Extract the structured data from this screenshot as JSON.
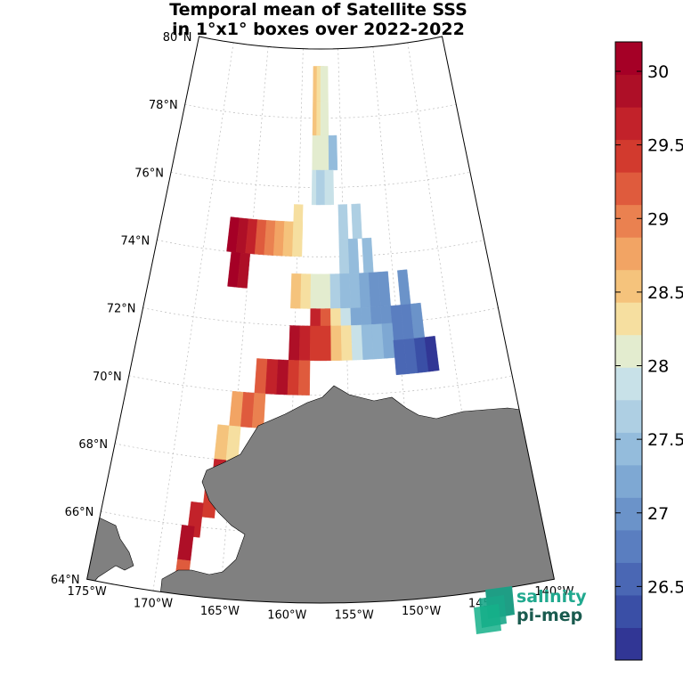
{
  "title": {
    "line1": "Temporal mean of Satellite SSS",
    "line2": "in 1°x1° boxes over 2022-2022"
  },
  "chart_data": {
    "type": "heatmap",
    "projection": "conic map",
    "lat_range": [
      64,
      80
    ],
    "lon_range": [
      -175,
      -140
    ],
    "lat_labels": [
      "80°N",
      "78°N",
      "76°N",
      "74°N",
      "72°N",
      "70°N",
      "68°N",
      "66°N",
      "64°N"
    ],
    "lon_labels": [
      "175°W",
      "170°W",
      "165°W",
      "160°W",
      "155°W",
      "150°W",
      "145°W",
      "140°W"
    ],
    "colorbar": {
      "range": [
        26.0,
        30.2
      ],
      "ticks": [
        "30",
        "29.5",
        "29",
        "28.5",
        "28",
        "27.5",
        "27",
        "26.5"
      ],
      "tick_values": [
        30,
        29.5,
        29,
        28.5,
        28,
        27.5,
        27,
        26.5
      ],
      "colors": [
        "#313695",
        "#3a4fa6",
        "#4a67b4",
        "#5a7ec0",
        "#6b93c9",
        "#7ea8d3",
        "#94bcdc",
        "#aecfe3",
        "#c8e1e8",
        "#e3eccf",
        "#f6dfa0",
        "#f5c37c",
        "#f2a464",
        "#ea8150",
        "#df5b3d",
        "#d23a2e",
        "#c2222a",
        "#ae0f27",
        "#a50026"
      ]
    },
    "cells": [
      {
        "lat": 79.0,
        "lon": -158.0,
        "v": 28.6
      },
      {
        "lat": 79.0,
        "lon": -157.5,
        "v": 28.3
      },
      {
        "lat": 79.0,
        "lon": -157.0,
        "v": 28.0
      },
      {
        "lat": 78.0,
        "lon": -158.0,
        "v": 28.6
      },
      {
        "lat": 78.0,
        "lon": -157.5,
        "v": 28.3
      },
      {
        "lat": 78.0,
        "lon": -157.0,
        "v": 28.0
      },
      {
        "lat": 77.0,
        "lon": -158.0,
        "v": 28.2
      },
      {
        "lat": 77.0,
        "lon": -157.0,
        "v": 28.2
      },
      {
        "lat": 77.0,
        "lon": -156.0,
        "v": 27.5
      },
      {
        "lat": 76.0,
        "lon": -158.0,
        "v": 27.8
      },
      {
        "lat": 76.0,
        "lon": -157.5,
        "v": 27.6
      },
      {
        "lat": 76.0,
        "lon": -156.5,
        "v": 27.9
      },
      {
        "lat": 75.0,
        "lon": -160.0,
        "v": 28.4
      },
      {
        "lat": 75.0,
        "lon": -155.0,
        "v": 27.7
      },
      {
        "lat": 75.0,
        "lon": -153.5,
        "v": 27.6
      },
      {
        "lat": 74.5,
        "lon": -167.0,
        "v": 30.0
      },
      {
        "lat": 74.5,
        "lon": -166.0,
        "v": 29.8
      },
      {
        "lat": 74.5,
        "lon": -165.0,
        "v": 29.6
      },
      {
        "lat": 74.5,
        "lon": -164.0,
        "v": 29.2
      },
      {
        "lat": 74.5,
        "lon": -163.0,
        "v": 28.9
      },
      {
        "lat": 74.5,
        "lon": -162.0,
        "v": 28.7
      },
      {
        "lat": 74.5,
        "lon": -161.0,
        "v": 28.5
      },
      {
        "lat": 74.5,
        "lon": -160.0,
        "v": 28.3
      },
      {
        "lat": 74.0,
        "lon": -155.0,
        "v": 27.6
      },
      {
        "lat": 74.0,
        "lon": -154.0,
        "v": 27.5
      },
      {
        "lat": 74.0,
        "lon": -152.5,
        "v": 27.4
      },
      {
        "lat": 73.5,
        "lon": -166.5,
        "v": 30.0
      },
      {
        "lat": 73.5,
        "lon": -165.5,
        "v": 29.8
      },
      {
        "lat": 73.0,
        "lon": -160.0,
        "v": 28.6
      },
      {
        "lat": 73.0,
        "lon": -159.0,
        "v": 28.4
      },
      {
        "lat": 73.0,
        "lon": -158.0,
        "v": 28.2
      },
      {
        "lat": 73.0,
        "lon": -157.0,
        "v": 28.0
      },
      {
        "lat": 73.0,
        "lon": -156.0,
        "v": 27.7
      },
      {
        "lat": 73.0,
        "lon": -155.0,
        "v": 27.5
      },
      {
        "lat": 73.0,
        "lon": -154.0,
        "v": 27.4
      },
      {
        "lat": 73.0,
        "lon": -153.0,
        "v": 27.2
      },
      {
        "lat": 73.0,
        "lon": -152.0,
        "v": 27.0
      },
      {
        "lat": 73.0,
        "lon": -151.0,
        "v": 27.1
      },
      {
        "lat": 73.0,
        "lon": -149.0,
        "v": 27.0
      },
      {
        "lat": 72.0,
        "lon": -158.0,
        "v": 29.6
      },
      {
        "lat": 72.0,
        "lon": -157.0,
        "v": 29.2
      },
      {
        "lat": 72.0,
        "lon": -156.0,
        "v": 28.3
      },
      {
        "lat": 72.0,
        "lon": -155.0,
        "v": 27.8
      },
      {
        "lat": 72.0,
        "lon": -154.0,
        "v": 27.3
      },
      {
        "lat": 72.0,
        "lon": -153.0,
        "v": 27.2
      },
      {
        "lat": 72.0,
        "lon": -152.0,
        "v": 27.0
      },
      {
        "lat": 72.0,
        "lon": -151.0,
        "v": 26.9
      },
      {
        "lat": 72.0,
        "lon": -150.0,
        "v": 26.8
      },
      {
        "lat": 72.0,
        "lon": -149.0,
        "v": 26.8
      },
      {
        "lat": 72.0,
        "lon": -148.0,
        "v": 26.9
      },
      {
        "lat": 71.5,
        "lon": -160.0,
        "v": 29.9
      },
      {
        "lat": 71.5,
        "lon": -159.0,
        "v": 29.6
      },
      {
        "lat": 71.5,
        "lon": -158.0,
        "v": 29.5
      },
      {
        "lat": 71.5,
        "lon": -157.0,
        "v": 29.4
      },
      {
        "lat": 71.5,
        "lon": -156.0,
        "v": 28.6
      },
      {
        "lat": 71.5,
        "lon": -155.0,
        "v": 28.3
      },
      {
        "lat": 71.5,
        "lon": -154.0,
        "v": 27.8
      },
      {
        "lat": 71.5,
        "lon": -153.0,
        "v": 27.5
      },
      {
        "lat": 71.5,
        "lon": -152.0,
        "v": 27.4
      },
      {
        "lat": 71.5,
        "lon": -151.0,
        "v": 27.3
      },
      {
        "lat": 71.0,
        "lon": -150.0,
        "v": 26.6
      },
      {
        "lat": 71.0,
        "lon": -149.0,
        "v": 26.5
      },
      {
        "lat": 71.0,
        "lon": -148.0,
        "v": 26.3
      },
      {
        "lat": 71.0,
        "lon": -147.0,
        "v": 26.2
      },
      {
        "lat": 70.5,
        "lon": -163.0,
        "v": 29.3
      },
      {
        "lat": 70.5,
        "lon": -162.0,
        "v": 29.6
      },
      {
        "lat": 70.5,
        "lon": -161.0,
        "v": 29.8
      },
      {
        "lat": 70.5,
        "lon": -160.0,
        "v": 29.5
      },
      {
        "lat": 70.5,
        "lon": -159.0,
        "v": 29.1
      },
      {
        "lat": 69.5,
        "lon": -165.0,
        "v": 28.7
      },
      {
        "lat": 69.5,
        "lon": -164.0,
        "v": 29.2
      },
      {
        "lat": 69.5,
        "lon": -163.0,
        "v": 29.0
      },
      {
        "lat": 68.5,
        "lon": -166.0,
        "v": 28.6
      },
      {
        "lat": 68.5,
        "lon": -165.0,
        "v": 28.4
      },
      {
        "lat": 67.5,
        "lon": -166.0,
        "v": 29.6
      },
      {
        "lat": 66.8,
        "lon": -166.5,
        "v": 29.5
      },
      {
        "lat": 66.2,
        "lon": -167.5,
        "v": 29.7
      },
      {
        "lat": 65.5,
        "lon": -168.0,
        "v": 29.8
      },
      {
        "lat": 64.5,
        "lon": -168.0,
        "v": 29.3
      }
    ]
  },
  "logo": {
    "line1": "salinity",
    "line2": "pi-mep"
  }
}
